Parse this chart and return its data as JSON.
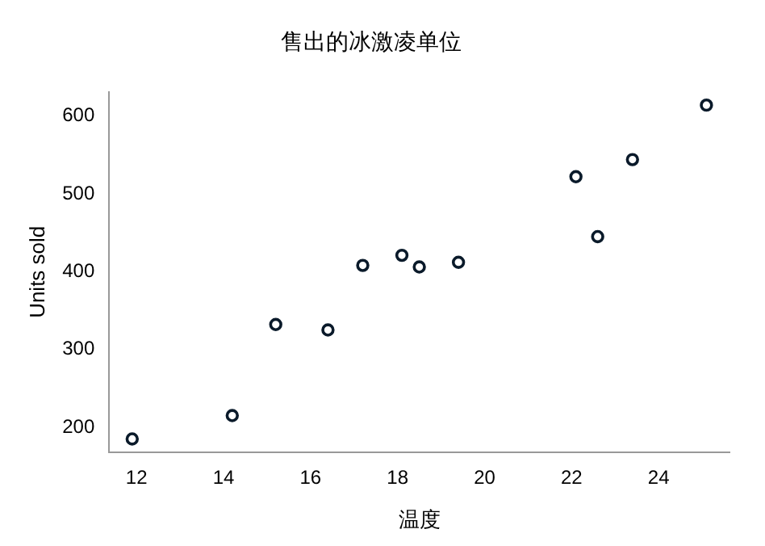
{
  "chart_data": {
    "type": "scatter",
    "title": "售出的冰激凌单位",
    "xlabel": "温度",
    "ylabel": "Units sold",
    "x": [
      14.2,
      16.4,
      11.9,
      15.2,
      18.5,
      22.1,
      19.4,
      25.1,
      23.4,
      18.1,
      22.6,
      17.2
    ],
    "series": [
      {
        "color": "#0a1a2a",
        "values": [
          215,
          325,
          185,
          332,
          406,
          522,
          412,
          614,
          544,
          421,
          445,
          408
        ]
      }
    ],
    "xlim": [
      11.37,
      25.63
    ],
    "xticks": [
      12,
      14,
      16,
      18,
      20,
      22,
      24
    ],
    "ylim": [
      167.8,
      631.2
    ],
    "yticks": [
      200,
      300,
      400,
      500,
      600
    ],
    "grid": false,
    "legend": false,
    "marker": "circle"
  }
}
